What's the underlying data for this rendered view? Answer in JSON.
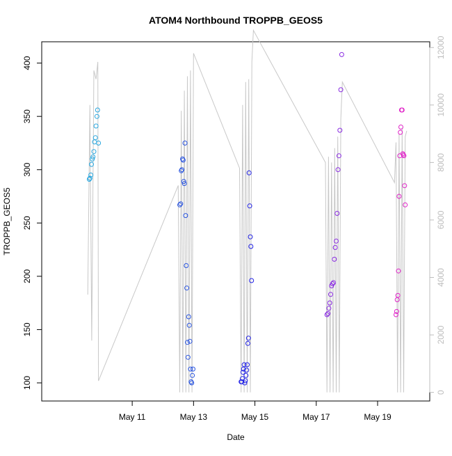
{
  "chart_data": {
    "type": "scatter",
    "title": "ATOM4 Northbound TROPPB_GEOS5",
    "xlabel": "Date",
    "ylabel": "TROPPB_GEOS5",
    "x_unit": "days since May 10 00:00",
    "xlim": [
      8.05,
      20.7
    ],
    "ylim": [
      83,
      420
    ],
    "x_ticks": [
      {
        "value": 11,
        "label": "May 11"
      },
      {
        "value": 13,
        "label": "May 13"
      },
      {
        "value": 15,
        "label": "May 15"
      },
      {
        "value": 17,
        "label": "May 17"
      },
      {
        "value": 19,
        "label": "May 19"
      }
    ],
    "y_ticks": [
      100,
      150,
      200,
      250,
      300,
      350,
      400
    ],
    "y2_ticks": [
      0,
      2000,
      4000,
      6000,
      8000,
      10000,
      12000
    ],
    "y2lim": [
      -300,
      12200
    ],
    "colors": {
      "series1": "#29a7df",
      "series2": "#2a55e0",
      "series3": "#2222e6",
      "series4": "#8a2be2",
      "series5": "#e023c8",
      "altitude_line": "#c8c8c8",
      "right_axis": "#bdbdbd"
    },
    "series": [
      {
        "name": "",
        "color": "#29a7df",
        "x": [
          9.6,
          9.62,
          9.65,
          9.67,
          9.7,
          9.72,
          9.75,
          9.77,
          9.8,
          9.82,
          9.85,
          9.87,
          9.9
        ],
        "y": [
          291,
          292,
          295,
          305,
          310,
          312,
          317,
          326,
          330,
          341,
          350,
          356,
          325
        ]
      },
      {
        "name": "",
        "color": "#2a55e0",
        "x": [
          12.55,
          12.58,
          12.6,
          12.62,
          12.64,
          12.66,
          12.68,
          12.7,
          12.72,
          12.74,
          12.76,
          12.78,
          12.8,
          12.82,
          12.84,
          12.86,
          12.88,
          12.9,
          12.92,
          12.94,
          12.96,
          12.98
        ],
        "y": [
          267,
          268,
          299,
          300,
          310,
          309,
          289,
          287,
          325,
          257,
          210,
          189,
          138,
          124,
          162,
          154,
          139,
          113,
          101,
          100,
          107,
          113
        ]
      },
      {
        "name": "",
        "color": "#2222e6",
        "x": [
          14.55,
          14.57,
          14.59,
          14.61,
          14.63,
          14.65,
          14.67,
          14.69,
          14.71,
          14.73,
          14.75,
          14.77,
          14.79,
          14.81,
          14.83,
          14.85,
          14.87,
          14.89
        ],
        "y": [
          101,
          101,
          104,
          110,
          113,
          117,
          100,
          102,
          107,
          112,
          117,
          137,
          142,
          297,
          266,
          237,
          228,
          196
        ]
      },
      {
        "name": "",
        "color": "#8a2be2",
        "x": [
          17.35,
          17.38,
          17.41,
          17.44,
          17.47,
          17.5,
          17.53,
          17.56,
          17.59,
          17.62,
          17.65,
          17.68,
          17.71,
          17.74,
          17.77,
          17.8,
          17.83
        ],
        "y": [
          164,
          165,
          170,
          175,
          183,
          191,
          193,
          194,
          216,
          227,
          233,
          259,
          300,
          313,
          337,
          375,
          408
        ]
      },
      {
        "name": "",
        "color": "#e023c8",
        "x": [
          19.6,
          19.62,
          19.64,
          19.66,
          19.68,
          19.7,
          19.72,
          19.74,
          19.76,
          19.78,
          19.8,
          19.82,
          19.84,
          19.86,
          19.88,
          19.9
        ],
        "y": [
          164,
          167,
          178,
          182,
          205,
          275,
          313,
          335,
          340,
          356,
          356,
          315,
          314,
          313,
          285,
          267
        ]
      }
    ],
    "altitude_line": {
      "name": "",
      "axis": "right",
      "x": [
        9.55,
        9.62,
        9.68,
        9.75,
        9.82,
        9.88,
        9.9,
        12.5,
        12.55,
        12.6,
        12.65,
        12.7,
        12.75,
        12.8,
        12.85,
        12.9,
        12.95,
        13.0,
        14.5,
        14.55,
        14.6,
        14.65,
        14.7,
        14.75,
        14.8,
        14.85,
        14.9,
        14.95,
        17.3,
        17.35,
        17.4,
        17.45,
        17.5,
        17.55,
        17.6,
        17.65,
        17.7,
        17.75,
        17.8,
        17.85,
        19.55,
        19.6,
        19.65,
        19.7,
        19.75,
        19.8,
        19.85,
        19.9,
        19.95
      ],
      "y": [
        3400,
        10000,
        1800,
        11200,
        10900,
        11500,
        400,
        7200,
        0,
        9800,
        0,
        10500,
        0,
        11000,
        0,
        11200,
        0,
        11800,
        7800,
        0,
        10000,
        0,
        10800,
        0,
        10900,
        0,
        11500,
        12600,
        8000,
        0,
        8200,
        0,
        8000,
        0,
        8500,
        0,
        8900,
        0,
        9500,
        10800,
        7300,
        8700,
        0,
        9000,
        0,
        9200,
        0,
        8900,
        9100
      ]
    }
  }
}
